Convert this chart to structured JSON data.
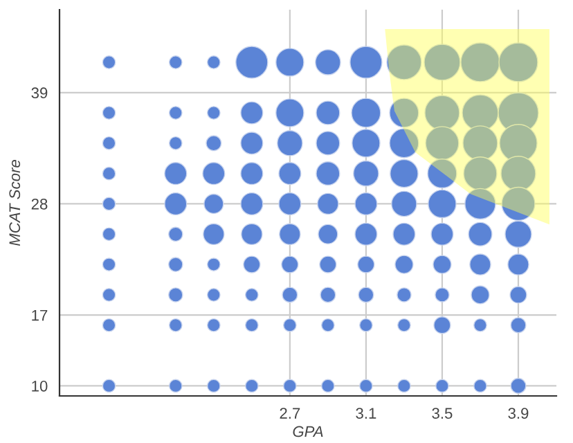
{
  "chart_data": {
    "type": "bubble",
    "relative": false,
    "xlabel": "GPA",
    "ylabel": "MCAT Score",
    "xlim": [
      1.49,
      4.1
    ],
    "ylim": [
      9.0,
      47.2
    ],
    "xticks": [
      2.7,
      3.1,
      3.5,
      3.9
    ],
    "yticks": [
      10,
      17,
      28,
      39
    ],
    "grid": true,
    "legend": false,
    "series": [
      {
        "color": "#5b84d6",
        "x": [
          1.75,
          2.1,
          2.3,
          2.5,
          2.7,
          2.9,
          3.1,
          3.3,
          3.5,
          3.7,
          3.9,
          1.75,
          2.1,
          2.3,
          2.5,
          2.7,
          2.9,
          3.1,
          3.3,
          3.5,
          3.7,
          3.9,
          1.75,
          2.1,
          2.3,
          2.5,
          2.7,
          2.9,
          3.1,
          3.3,
          3.5,
          3.7,
          3.9,
          1.75,
          2.1,
          2.3,
          2.5,
          2.7,
          2.9,
          3.1,
          3.3,
          3.5,
          3.7,
          3.9,
          1.75,
          2.1,
          2.3,
          2.5,
          2.7,
          2.9,
          3.1,
          3.3,
          3.5,
          3.7,
          3.9,
          1.75,
          2.1,
          2.3,
          2.5,
          2.7,
          2.9,
          3.1,
          3.3,
          3.5,
          3.7,
          3.9,
          1.75,
          2.1,
          2.3,
          2.5,
          2.7,
          2.9,
          3.1,
          3.3,
          3.5,
          3.7,
          3.9,
          1.75,
          2.1,
          2.3,
          2.5,
          2.7,
          2.9,
          3.1,
          3.3,
          3.5,
          3.7,
          3.9,
          1.75,
          2.1,
          2.3,
          2.5,
          2.7,
          2.9,
          3.1,
          3.3,
          3.5,
          3.7,
          3.9,
          1.75,
          2.1,
          2.3,
          2.5,
          2.7,
          2.9,
          3.1,
          3.3,
          3.5,
          3.7,
          3.9
        ],
        "values": [
          42,
          42,
          42,
          42,
          42,
          42,
          42,
          42,
          42,
          42,
          42,
          37,
          37,
          37,
          37,
          37,
          37,
          37,
          37,
          37,
          37,
          37,
          34,
          34,
          34,
          34,
          34,
          34,
          34,
          34,
          34,
          34,
          34,
          31,
          31,
          31,
          31,
          31,
          31,
          31,
          31,
          31,
          31,
          31,
          28,
          28,
          28,
          28,
          28,
          28,
          28,
          28,
          28,
          28,
          28,
          25,
          25,
          25,
          25,
          25,
          25,
          25,
          25,
          25,
          25,
          25,
          22,
          22,
          22,
          22,
          22,
          22,
          22,
          22,
          22,
          22,
          22,
          19,
          19,
          19,
          19,
          19,
          19,
          19,
          19,
          19,
          19,
          19,
          16,
          16,
          16,
          16,
          16,
          16,
          16,
          16,
          16,
          16,
          16,
          10,
          10,
          10,
          10,
          10,
          10,
          10,
          10,
          10,
          10,
          10
        ],
        "sizes": [
          0.1,
          0.1,
          0.1,
          0.63,
          0.48,
          0.39,
          0.63,
          0.74,
          0.8,
          0.93,
          0.93,
          0.1,
          0.1,
          0.1,
          0.3,
          0.48,
          0.34,
          0.52,
          0.52,
          0.74,
          0.8,
          1,
          0.1,
          0.1,
          0.14,
          0.3,
          0.39,
          0.34,
          0.48,
          0.52,
          0.68,
          0.74,
          0.87,
          0.1,
          0.3,
          0.3,
          0.3,
          0.3,
          0.34,
          0.39,
          0.48,
          0.52,
          0.68,
          0.74,
          0.1,
          0.3,
          0.23,
          0.3,
          0.3,
          0.27,
          0.3,
          0.39,
          0.48,
          0.58,
          0.68,
          0.1,
          0.12,
          0.27,
          0.27,
          0.27,
          0.23,
          0.3,
          0.3,
          0.3,
          0.34,
          0.43,
          0.1,
          0.12,
          0.1,
          0.17,
          0.17,
          0.17,
          0.17,
          0.2,
          0.2,
          0.27,
          0.27,
          0.1,
          0.12,
          0.1,
          0.1,
          0.14,
          0.14,
          0.14,
          0.12,
          0.12,
          0.2,
          0.17,
          0.1,
          0.1,
          0.1,
          0.1,
          0.1,
          0.1,
          0.1,
          0.1,
          0.17,
          0.1,
          0.14,
          0.1,
          0.1,
          0.1,
          0.1,
          0.1,
          0.1,
          0.1,
          0.1,
          0.1,
          0.1,
          0.14
        ]
      }
    ]
  }
}
